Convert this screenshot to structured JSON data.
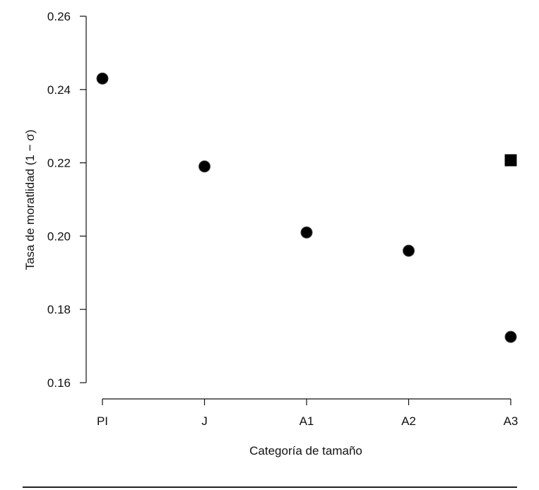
{
  "chart_data": {
    "type": "scatter",
    "title": "",
    "xlabel": "Categoría de tamaño",
    "ylabel": "Tasa de moratlidad (1 − σ)",
    "categories": [
      "PI",
      "J",
      "A1",
      "A2",
      "A3"
    ],
    "y_ticks": [
      "0.16",
      "0.18",
      "0.20",
      "0.22",
      "0.24",
      "0.26"
    ],
    "ylim": [
      0.16,
      0.26
    ],
    "grid": false,
    "legend": "none",
    "series": [
      {
        "marker": "circle",
        "color": "#000000",
        "points": [
          {
            "x": "PI",
            "y": 0.243
          },
          {
            "x": "J",
            "y": 0.219
          },
          {
            "x": "A1",
            "y": 0.201
          },
          {
            "x": "A2",
            "y": 0.196
          },
          {
            "x": "A3",
            "y": 0.1725
          }
        ]
      },
      {
        "marker": "square",
        "color": "#000000",
        "points": [
          {
            "x": "A3",
            "y": 0.2207
          }
        ]
      }
    ]
  }
}
